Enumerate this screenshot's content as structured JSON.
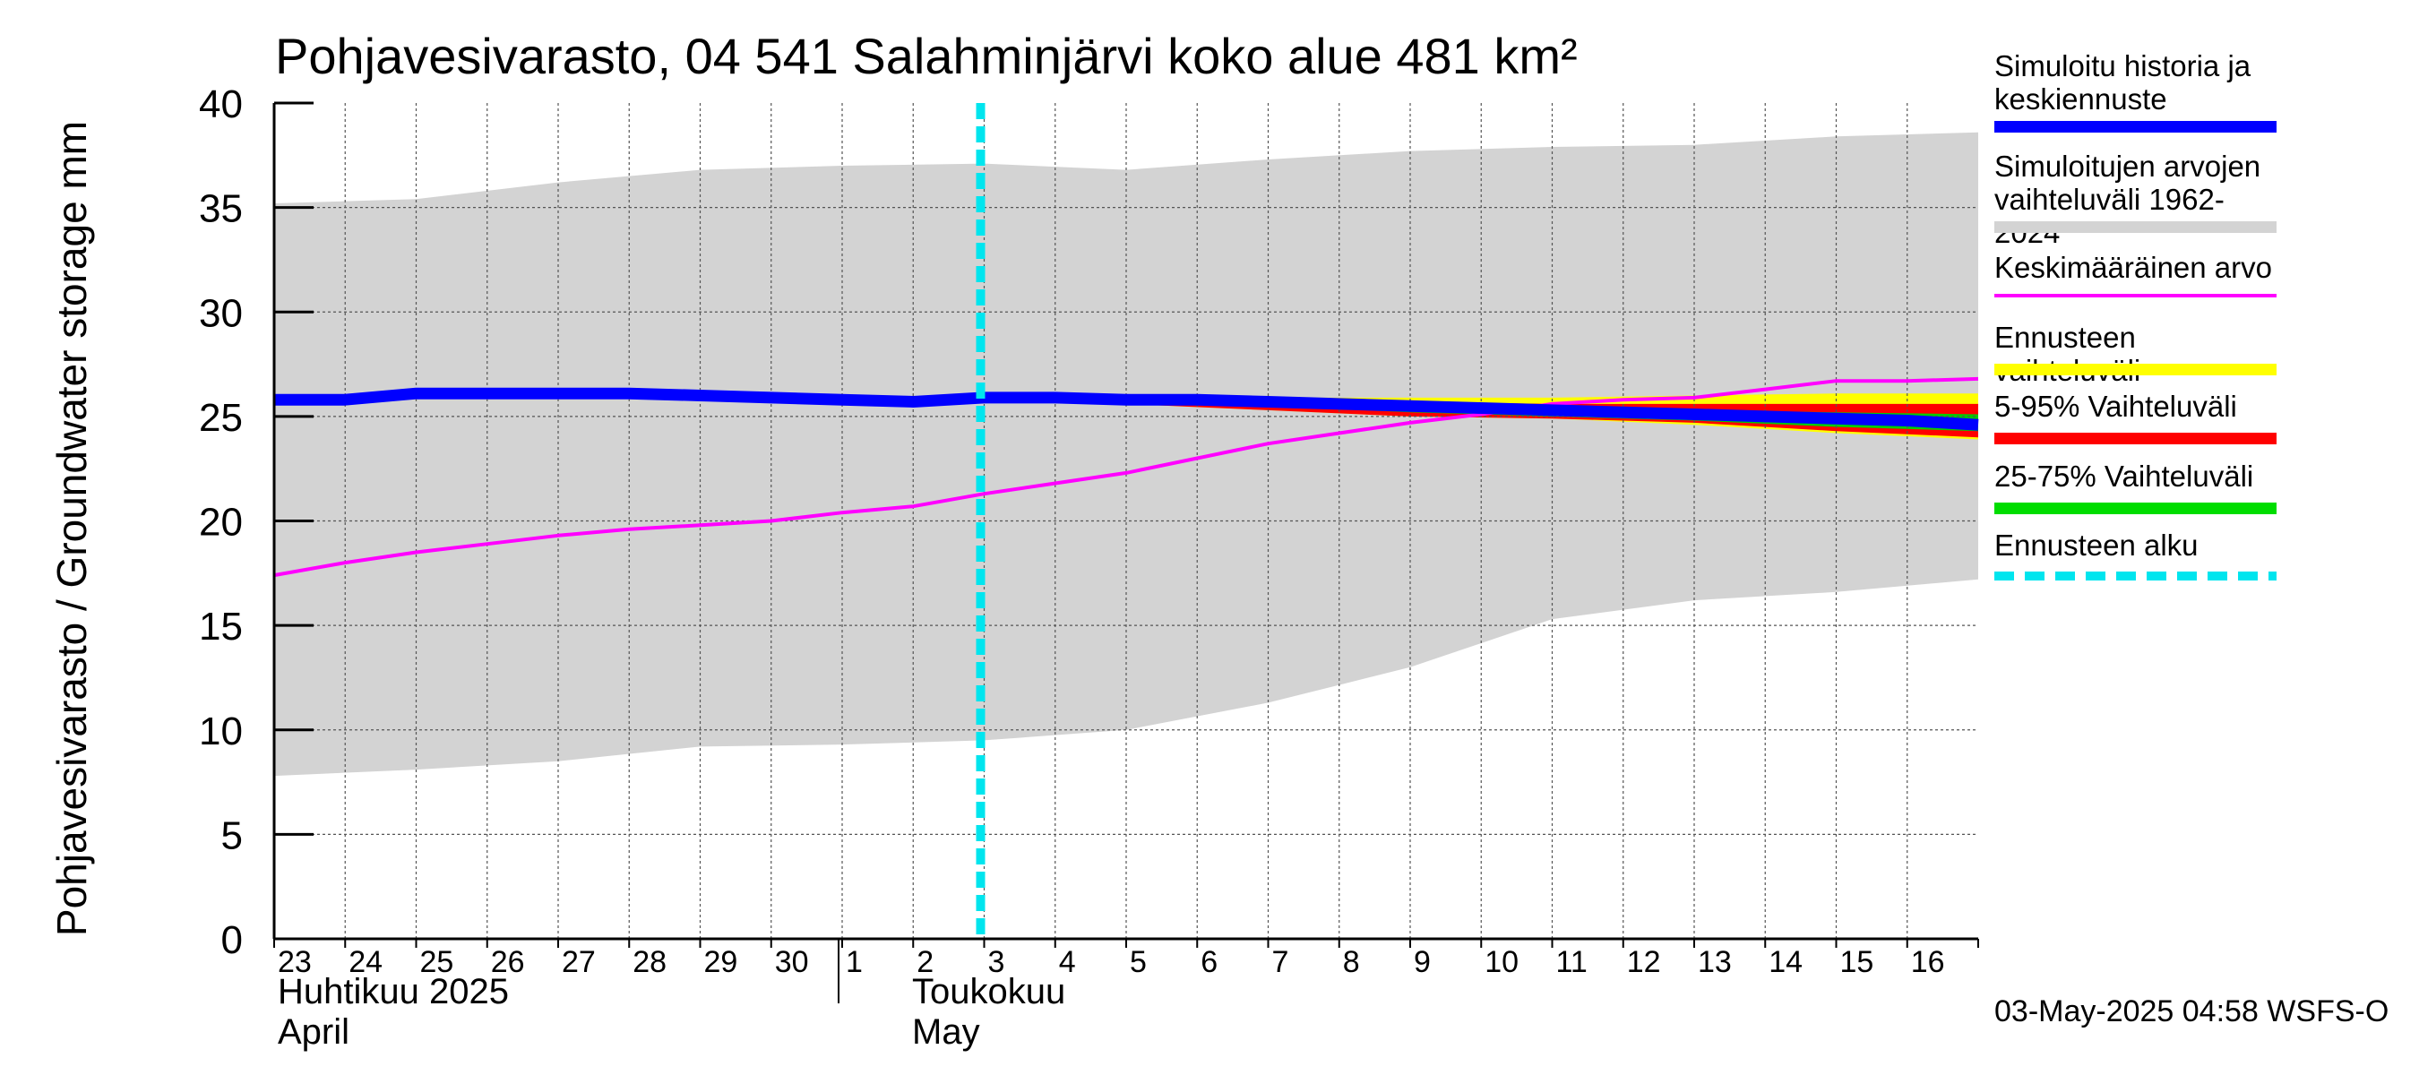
{
  "chart_data": {
    "type": "area",
    "title": "Pohjavesivarasto, 04 541 Salahminjärvi koko alue 481 km²",
    "ylabel": "Pohjavesivarasto / Groundwater storage   mm",
    "ylim": [
      0,
      40
    ],
    "yticks": [
      "0",
      "5",
      "10",
      "15",
      "20",
      "25",
      "30",
      "35",
      "40"
    ],
    "x_days": [
      "23",
      "24",
      "25",
      "26",
      "27",
      "28",
      "29",
      "30",
      "1",
      "2",
      "3",
      "4",
      "5",
      "6",
      "7",
      "8",
      "9",
      "10",
      "11",
      "12",
      "13",
      "14",
      "15",
      "16"
    ],
    "month_labels": [
      {
        "line1": "Huhtikuu  2025",
        "line2": "April"
      },
      {
        "line1": "Toukokuu",
        "line2": "May"
      }
    ],
    "forecast_start_day_index": 10,
    "grid": true,
    "series": [
      {
        "name": "Simuloitujen arvojen vaihteluväli 1962-2024",
        "kind": "band",
        "x": [
          0,
          2,
          4,
          6,
          8,
          10,
          12,
          14,
          16,
          18,
          20,
          22,
          24
        ],
        "upper": [
          35.2,
          35.4,
          36.2,
          36.8,
          37.0,
          37.1,
          36.8,
          37.3,
          37.7,
          37.9,
          38.0,
          38.4,
          38.6
        ],
        "lower": [
          7.8,
          8.1,
          8.5,
          9.2,
          9.3,
          9.5,
          10.0,
          11.3,
          13.0,
          15.3,
          16.2,
          16.6,
          17.2
        ],
        "color": "#d3d3d3"
      },
      {
        "name": "Ennusteen vaihteluväli",
        "kind": "band",
        "x": [
          10,
          12,
          14,
          16,
          18,
          20,
          22,
          24
        ],
        "upper": [
          25.9,
          26.0,
          25.9,
          25.9,
          25.9,
          26.0,
          26.1,
          26.1
        ],
        "lower": [
          25.9,
          25.6,
          25.3,
          25.0,
          24.9,
          24.6,
          24.2,
          23.9
        ],
        "color": "#ffff00"
      },
      {
        "name": "5-95% Vaihteluväli",
        "kind": "band",
        "x": [
          10,
          12,
          14,
          16,
          18,
          20,
          22,
          24
        ],
        "upper": [
          25.9,
          25.9,
          25.8,
          25.7,
          25.6,
          25.6,
          25.6,
          25.6
        ],
        "lower": [
          25.9,
          25.6,
          25.3,
          25.0,
          24.9,
          24.7,
          24.3,
          24.0
        ],
        "color": "#ff0000"
      },
      {
        "name": "25-75% Vaihteluväli",
        "kind": "band",
        "x": [
          10,
          12,
          14,
          16,
          18,
          20,
          22,
          24
        ],
        "upper": [
          25.9,
          25.8,
          25.7,
          25.6,
          25.4,
          25.3,
          25.2,
          25.1
        ],
        "lower": [
          25.9,
          25.7,
          25.5,
          25.2,
          25.0,
          24.8,
          24.5,
          24.3
        ],
        "color": "#00cc00"
      },
      {
        "name": "Keskimääräinen arvo",
        "kind": "line",
        "x": [
          0,
          1,
          2,
          3,
          4,
          5,
          6,
          7,
          8,
          9,
          10,
          11,
          12,
          13,
          14,
          15,
          16,
          17,
          18,
          19,
          20,
          21,
          22,
          23,
          24
        ],
        "values": [
          17.4,
          18.0,
          18.5,
          18.9,
          19.3,
          19.6,
          19.8,
          20.0,
          20.4,
          20.7,
          21.3,
          21.8,
          22.3,
          23.0,
          23.7,
          24.2,
          24.7,
          25.1,
          25.6,
          25.8,
          25.9,
          26.3,
          26.7,
          26.7,
          26.8
        ],
        "color": "#ff00ff"
      },
      {
        "name": "Simuloitu historia ja keskiennuste",
        "kind": "line",
        "x": [
          0,
          1,
          2,
          3,
          4,
          5,
          6,
          7,
          8,
          9,
          10,
          11,
          12,
          13,
          14,
          15,
          16,
          17,
          18,
          19,
          20,
          21,
          22,
          23,
          24
        ],
        "values": [
          25.8,
          25.8,
          26.1,
          26.1,
          26.1,
          26.1,
          26.0,
          25.9,
          25.8,
          25.7,
          25.9,
          25.9,
          25.8,
          25.8,
          25.7,
          25.6,
          25.5,
          25.4,
          25.3,
          25.2,
          25.1,
          25.0,
          24.9,
          24.8,
          24.6
        ],
        "color": "#0000ff"
      }
    ],
    "legend_position": "right"
  },
  "legend": [
    {
      "label": "Simuloitu historia ja\nkeskiennuste",
      "color": "#0000ff",
      "style": "solid"
    },
    {
      "label": "Simuloitujen arvojen\nvaihteluväli 1962-2024",
      "color": "#d3d3d3",
      "style": "solid"
    },
    {
      "label": "Keskimääräinen arvo",
      "color": "#ff00ff",
      "style": "thin"
    },
    {
      "label": "Ennusteen vaihteluväli",
      "color": "#ffff00",
      "style": "solid"
    },
    {
      "label": "5-95% Vaihteluväli",
      "color": "#ff0000",
      "style": "solid"
    },
    {
      "label": "25-75% Vaihteluväli",
      "color": "#00dd00",
      "style": "solid"
    },
    {
      "label": "Ennusteen alku",
      "color": "#00e5ee",
      "style": "dashed"
    }
  ],
  "timestamp": "03-May-2025 04:58 WSFS-O"
}
